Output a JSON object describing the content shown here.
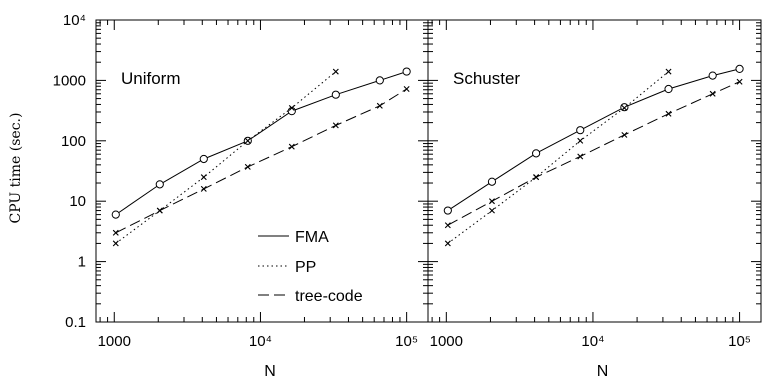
{
  "chart_data": {
    "type": "line",
    "ylabel": "CPU time (sec.)",
    "xlabel": "N",
    "xscale": "log",
    "yscale": "log",
    "xlim": [
      750,
      140000
    ],
    "ylim": [
      0.1,
      10000
    ],
    "x_ticks": [
      "1000",
      "10⁴",
      "10⁵"
    ],
    "y_ticks": [
      "0.1",
      "1",
      "10",
      "100",
      "1000",
      "10⁴"
    ],
    "legend": {
      "placement": "lower-right of left panel",
      "entries": [
        "FMA",
        "PP",
        "tree-code"
      ]
    },
    "panels": [
      {
        "label": "Uniform",
        "series": [
          {
            "name": "FMA",
            "style": "solid",
            "marker": "circle",
            "x": [
              1024,
              2048,
              4096,
              8192,
              16384,
              32768,
              65536,
              100000
            ],
            "y": [
              6,
              19,
              50,
              100,
              310,
              580,
              1000,
              1400
            ]
          },
          {
            "name": "PP",
            "style": "dotted",
            "marker": "cross",
            "x": [
              1024,
              2048,
              4096,
              8192,
              16384,
              32768
            ],
            "y": [
              2,
              7,
              25,
              100,
              350,
              1400
            ]
          },
          {
            "name": "tree-code",
            "style": "dashed",
            "marker": "cross",
            "x": [
              1024,
              2048,
              4096,
              8192,
              16384,
              32768,
              65536,
              100000
            ],
            "y": [
              3,
              7,
              16,
              37,
              80,
              180,
              380,
              720
            ]
          }
        ]
      },
      {
        "label": "Schuster",
        "series": [
          {
            "name": "FMA",
            "style": "solid",
            "marker": "circle",
            "x": [
              1024,
              2048,
              4096,
              8192,
              16384,
              32768,
              65536,
              100000
            ],
            "y": [
              7,
              21,
              62,
              150,
              360,
              720,
              1200,
              1550
            ]
          },
          {
            "name": "PP",
            "style": "dotted",
            "marker": "cross",
            "x": [
              1024,
              2048,
              4096,
              8192,
              16384,
              32768
            ],
            "y": [
              2,
              7,
              25,
              100,
              350,
              1400
            ]
          },
          {
            "name": "tree-code",
            "style": "dashed",
            "marker": "cross",
            "x": [
              1024,
              2048,
              4096,
              8192,
              16384,
              32768,
              65536,
              100000
            ],
            "y": [
              4,
              10,
              25,
              55,
              125,
              280,
              600,
              950
            ]
          }
        ]
      }
    ]
  }
}
